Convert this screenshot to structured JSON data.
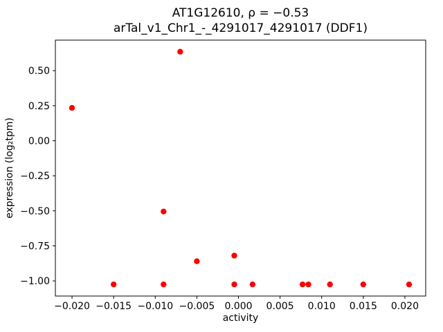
{
  "chart_data": {
    "type": "scatter",
    "title": "AT1G12610, ρ = −0.53",
    "subtitle": "arTal_v1_Chr1_-_4291017_4291017 (DDF1)",
    "xlabel": "activity",
    "ylabel": "expression (log₂tpm)",
    "xlim": [
      -0.022,
      0.0225
    ],
    "ylim": [
      -1.108,
      0.718
    ],
    "grid": false,
    "legend": "none",
    "point_color": "#ff0000",
    "xticks": [
      {
        "value": -0.02,
        "label": "−0.020"
      },
      {
        "value": -0.015,
        "label": "−0.015"
      },
      {
        "value": -0.01,
        "label": "−0.010"
      },
      {
        "value": -0.005,
        "label": "−0.005"
      },
      {
        "value": 0.0,
        "label": "0.000"
      },
      {
        "value": 0.005,
        "label": "0.005"
      },
      {
        "value": 0.01,
        "label": "0.010"
      },
      {
        "value": 0.015,
        "label": "0.015"
      },
      {
        "value": 0.02,
        "label": "0.020"
      }
    ],
    "yticks": [
      {
        "value": 0.5,
        "label": "0.50"
      },
      {
        "value": 0.25,
        "label": "0.25"
      },
      {
        "value": 0.0,
        "label": "0.00"
      },
      {
        "value": -0.25,
        "label": "−0.25"
      },
      {
        "value": -0.5,
        "label": "−0.50"
      },
      {
        "value": -0.75,
        "label": "−0.75"
      },
      {
        "value": -1.0,
        "label": "−1.00"
      }
    ],
    "points": [
      [
        -0.02,
        0.235
      ],
      [
        -0.007,
        0.635
      ],
      [
        -0.009,
        -0.505
      ],
      [
        -0.005,
        -0.86
      ],
      [
        -0.0005,
        -0.82
      ],
      [
        -0.015,
        -1.025
      ],
      [
        -0.009,
        -1.025
      ],
      [
        -0.0005,
        -1.025
      ],
      [
        0.0017,
        -1.025
      ],
      [
        0.0077,
        -1.025
      ],
      [
        0.0084,
        -1.025
      ],
      [
        0.011,
        -1.025
      ],
      [
        0.015,
        -1.025
      ],
      [
        0.0205,
        -1.025
      ]
    ]
  }
}
